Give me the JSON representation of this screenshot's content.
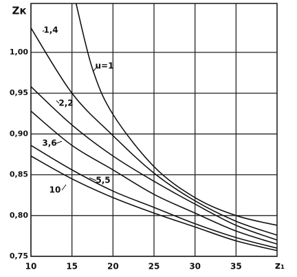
{
  "chart_data": {
    "type": "line",
    "y_label": "Zк",
    "x_label": "z₁",
    "xlim": [
      10,
      40
    ],
    "ylim": [
      0.75,
      1.06
    ],
    "xticks": [
      10,
      15,
      20,
      25,
      30,
      35
    ],
    "yticks": [
      {
        "value": 0.75,
        "label": "0,75"
      },
      {
        "value": 0.8,
        "label": "0,80"
      },
      {
        "value": 0.85,
        "label": "0,85"
      },
      {
        "value": 0.9,
        "label": "0,90"
      },
      {
        "value": 0.95,
        "label": "0,95"
      },
      {
        "value": 1.0,
        "label": "1,00"
      }
    ],
    "grid": true,
    "series": [
      {
        "name": "u=1",
        "color": "#111111",
        "x": [
          15.5,
          17.5,
          20,
          25,
          30,
          35,
          40
        ],
        "values": [
          1.06,
          0.98,
          0.924,
          0.86,
          0.822,
          0.8,
          0.788
        ]
      },
      {
        "name": "1,4",
        "color": "#111111",
        "x": [
          10,
          15,
          20,
          25,
          30,
          35,
          40
        ],
        "values": [
          1.03,
          0.95,
          0.898,
          0.852,
          0.818,
          0.793,
          0.776
        ]
      },
      {
        "name": "2,2",
        "color": "#111111",
        "x": [
          10,
          15,
          20,
          25,
          30,
          35,
          40
        ],
        "values": [
          0.958,
          0.911,
          0.873,
          0.842,
          0.814,
          0.788,
          0.77
        ]
      },
      {
        "name": "3,6",
        "color": "#111111",
        "x": [
          10,
          15,
          20,
          25,
          30,
          35,
          40
        ],
        "values": [
          0.928,
          0.886,
          0.856,
          0.826,
          0.803,
          0.781,
          0.765
        ]
      },
      {
        "name": "5,5",
        "color": "#111111",
        "x": [
          10,
          15,
          20,
          25,
          30,
          35,
          40
        ],
        "values": [
          0.886,
          0.856,
          0.83,
          0.81,
          0.79,
          0.773,
          0.76
        ]
      },
      {
        "name": "10",
        "color": "#111111",
        "x": [
          10,
          15,
          20,
          25,
          30,
          35,
          40
        ],
        "values": [
          0.873,
          0.845,
          0.822,
          0.803,
          0.786,
          0.769,
          0.757
        ]
      }
    ]
  }
}
